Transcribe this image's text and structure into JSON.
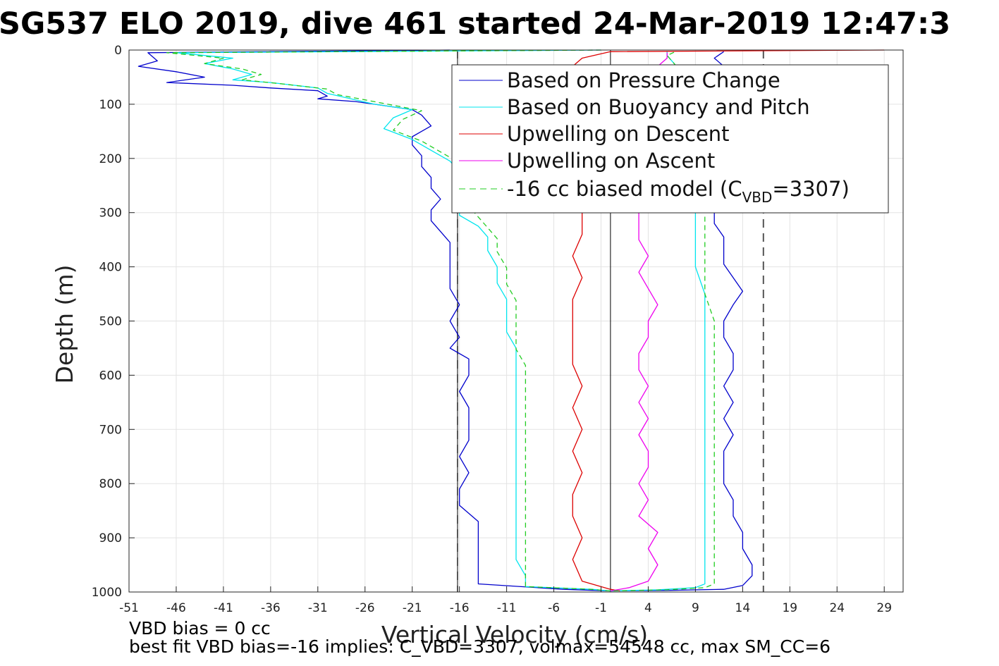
{
  "figure": {
    "footnote_1": "VBD bias = 0 cc",
    "footnote_2": "best fit VBD bias=-16 implies: C_VBD=3307, volmax=54548 cc, max SM_CC=6"
  },
  "chart_data": {
    "type": "line",
    "title": "SG537 ELO 2019, dive 461 started 24-Mar-2019 12:47:3",
    "xlabel": "Vertical Velocity (cm/s)",
    "ylabel": "Depth (m)",
    "xlim": [
      -51,
      31
    ],
    "ylim": [
      1000,
      0
    ],
    "y_reversed": true,
    "grid": true,
    "legend_placement": "top-right",
    "x_ticks": [
      -51,
      -46,
      -41,
      -36,
      -31,
      -26,
      -21,
      -16,
      -11,
      -6,
      -1,
      4,
      9,
      14,
      19,
      24,
      29
    ],
    "y_ticks": [
      0,
      100,
      200,
      300,
      400,
      500,
      600,
      700,
      800,
      900,
      1000
    ],
    "legend": {
      "pressure": "Based on Pressure Change",
      "buoyancy": "Based on Buoyancy and Pitch",
      "up_descent": "Upwelling on Descent",
      "up_ascent": "Upwelling on Ascent",
      "model_prefix": "-16 cc biased model (C",
      "model_sub": "VBD",
      "model_suffix": "=3307)"
    },
    "reference_lines": {
      "solid_x": [
        -16.2,
        0
      ],
      "dashed_x": [
        -16.2,
        16.2
      ]
    },
    "series": [
      {
        "key": "pressure",
        "color": "#0000cc",
        "style": "solid",
        "points": [
          [
            -17,
            0
          ],
          [
            -49,
            5
          ],
          [
            -48,
            20
          ],
          [
            -50,
            30
          ],
          [
            -46,
            40
          ],
          [
            -43,
            50
          ],
          [
            -47,
            60
          ],
          [
            -40,
            65
          ],
          [
            -36,
            70
          ],
          [
            -31,
            75
          ],
          [
            -30,
            85
          ],
          [
            -31,
            90
          ],
          [
            -27,
            95
          ],
          [
            -25,
            100
          ],
          [
            -21,
            110
          ],
          [
            -20,
            120
          ],
          [
            -19,
            140
          ],
          [
            -20,
            150
          ],
          [
            -21,
            160
          ],
          [
            -21,
            175
          ],
          [
            -20,
            195
          ],
          [
            -20,
            215
          ],
          [
            -19,
            235
          ],
          [
            -19,
            255
          ],
          [
            -18,
            275
          ],
          [
            -19,
            295
          ],
          [
            -19,
            315
          ],
          [
            -18,
            335
          ],
          [
            -17,
            355
          ],
          [
            -17,
            380
          ],
          [
            -17,
            410
          ],
          [
            -17,
            440
          ],
          [
            -16,
            470
          ],
          [
            -17,
            500
          ],
          [
            -16,
            530
          ],
          [
            -17,
            550
          ],
          [
            -15,
            570
          ],
          [
            -15,
            600
          ],
          [
            -16,
            630
          ],
          [
            -15,
            660
          ],
          [
            -15,
            690
          ],
          [
            -15,
            720
          ],
          [
            -16,
            750
          ],
          [
            -15,
            780
          ],
          [
            -16,
            810
          ],
          [
            -16,
            840
          ],
          [
            -14,
            870
          ],
          [
            -14,
            900
          ],
          [
            -14,
            930
          ],
          [
            -14,
            960
          ],
          [
            -14,
            985
          ],
          [
            -5,
            995
          ],
          [
            0,
            998
          ],
          [
            6,
            997
          ],
          [
            12,
            995
          ],
          [
            14,
            988
          ],
          [
            15,
            970
          ],
          [
            15,
            950
          ],
          [
            14,
            920
          ],
          [
            14,
            890
          ],
          [
            13,
            860
          ],
          [
            13,
            830
          ],
          [
            12,
            800
          ],
          [
            12,
            770
          ],
          [
            12,
            740
          ],
          [
            13,
            710
          ],
          [
            12,
            680
          ],
          [
            13,
            650
          ],
          [
            12,
            620
          ],
          [
            13,
            590
          ],
          [
            13,
            560
          ],
          [
            12,
            530
          ],
          [
            12,
            500
          ],
          [
            13,
            470
          ],
          [
            14,
            445
          ],
          [
            13,
            420
          ],
          [
            12,
            395
          ],
          [
            12,
            370
          ],
          [
            12,
            345
          ],
          [
            11,
            320
          ],
          [
            11,
            300
          ],
          [
            11,
            270
          ],
          [
            10,
            240
          ],
          [
            10,
            210
          ],
          [
            10,
            180
          ],
          [
            10,
            150
          ],
          [
            11,
            120
          ],
          [
            11,
            90
          ],
          [
            12,
            60
          ],
          [
            13,
            45
          ],
          [
            12,
            30
          ],
          [
            11,
            15
          ],
          [
            12,
            3
          ]
        ]
      },
      {
        "key": "buoyancy",
        "color": "#00e5ee",
        "style": "solid",
        "points": [
          [
            -1,
            0
          ],
          [
            -46,
            5
          ],
          [
            -40,
            15
          ],
          [
            -43,
            25
          ],
          [
            -40,
            35
          ],
          [
            -38,
            45
          ],
          [
            -40,
            55
          ],
          [
            -36,
            60
          ],
          [
            -31,
            70
          ],
          [
            -30,
            80
          ],
          [
            -27,
            92
          ],
          [
            -25,
            100
          ],
          [
            -21,
            110
          ],
          [
            -23,
            125
          ],
          [
            -24,
            145
          ],
          [
            -21,
            165
          ],
          [
            -19,
            185
          ],
          [
            -17,
            205
          ],
          [
            -16,
            225
          ],
          [
            -16,
            245
          ],
          [
            -15,
            265
          ],
          [
            -16,
            285
          ],
          [
            -16,
            305
          ],
          [
            -14,
            325
          ],
          [
            -13,
            345
          ],
          [
            -13,
            370
          ],
          [
            -12,
            400
          ],
          [
            -12,
            430
          ],
          [
            -11,
            460
          ],
          [
            -11,
            490
          ],
          [
            -11,
            520
          ],
          [
            -10,
            550
          ],
          [
            -10,
            580
          ],
          [
            -10,
            610
          ],
          [
            -10,
            640
          ],
          [
            -10,
            670
          ],
          [
            -10,
            700
          ],
          [
            -10,
            730
          ],
          [
            -10,
            760
          ],
          [
            -10,
            790
          ],
          [
            -10,
            820
          ],
          [
            -10,
            850
          ],
          [
            -10,
            880
          ],
          [
            -10,
            910
          ],
          [
            -10,
            940
          ],
          [
            -9,
            970
          ],
          [
            -9,
            990
          ],
          [
            -2,
            995
          ],
          [
            0,
            998
          ],
          [
            5,
            996
          ],
          [
            9,
            992
          ],
          [
            10,
            985
          ],
          [
            10,
            950
          ],
          [
            10,
            900
          ],
          [
            10,
            850
          ],
          [
            10,
            800
          ],
          [
            10,
            750
          ],
          [
            10,
            700
          ],
          [
            10,
            650
          ],
          [
            10,
            600
          ],
          [
            10,
            550
          ],
          [
            10,
            500
          ],
          [
            10,
            450
          ],
          [
            9,
            400
          ],
          [
            9,
            350
          ],
          [
            9,
            300
          ],
          [
            8,
            250
          ],
          [
            8,
            200
          ],
          [
            8,
            150
          ],
          [
            7,
            100
          ],
          [
            7,
            60
          ],
          [
            7,
            30
          ],
          [
            6,
            10
          ],
          [
            6,
            2
          ]
        ]
      },
      {
        "key": "up_descent",
        "color": "#dd0000",
        "style": "solid",
        "points": [
          [
            29,
            0
          ],
          [
            0,
            3
          ],
          [
            -3,
            15
          ],
          [
            -4,
            30
          ],
          [
            -4,
            60
          ],
          [
            -3,
            100
          ],
          [
            -3,
            150
          ],
          [
            -3,
            200
          ],
          [
            -3,
            250
          ],
          [
            -3,
            300
          ],
          [
            -3,
            340
          ],
          [
            -4,
            380
          ],
          [
            -3,
            420
          ],
          [
            -4,
            460
          ],
          [
            -4,
            500
          ],
          [
            -4,
            540
          ],
          [
            -4,
            580
          ],
          [
            -3,
            620
          ],
          [
            -4,
            660
          ],
          [
            -3,
            700
          ],
          [
            -4,
            740
          ],
          [
            -3,
            780
          ],
          [
            -4,
            820
          ],
          [
            -4,
            860
          ],
          [
            -3,
            900
          ],
          [
            -4,
            940
          ],
          [
            -3,
            980
          ],
          [
            0,
            995
          ],
          [
            1,
            998
          ]
        ]
      },
      {
        "key": "up_ascent",
        "color": "#ee00ee",
        "style": "solid",
        "points": [
          [
            0,
            998
          ],
          [
            2,
            992
          ],
          [
            4,
            980
          ],
          [
            5,
            950
          ],
          [
            4,
            920
          ],
          [
            5,
            890
          ],
          [
            3,
            860
          ],
          [
            4,
            830
          ],
          [
            3,
            800
          ],
          [
            4,
            770
          ],
          [
            4,
            740
          ],
          [
            3,
            710
          ],
          [
            4,
            680
          ],
          [
            3,
            650
          ],
          [
            4,
            620
          ],
          [
            3,
            590
          ],
          [
            3,
            560
          ],
          [
            4,
            530
          ],
          [
            4,
            500
          ],
          [
            5,
            470
          ],
          [
            4,
            440
          ],
          [
            3,
            410
          ],
          [
            4,
            380
          ],
          [
            3,
            350
          ],
          [
            3,
            320
          ],
          [
            3,
            290
          ],
          [
            4,
            250
          ],
          [
            5,
            200
          ],
          [
            5,
            150
          ],
          [
            6,
            100
          ],
          [
            6,
            60
          ],
          [
            5,
            30
          ],
          [
            6,
            15
          ],
          [
            6,
            5
          ]
        ]
      },
      {
        "key": "model",
        "color": "#22cc22",
        "style": "dashed",
        "points": [
          [
            -1,
            0
          ],
          [
            -47,
            5
          ],
          [
            -41,
            15
          ],
          [
            -43,
            25
          ],
          [
            -39,
            35
          ],
          [
            -37,
            45
          ],
          [
            -39,
            55
          ],
          [
            -35,
            62
          ],
          [
            -30,
            72
          ],
          [
            -29,
            82
          ],
          [
            -26,
            92
          ],
          [
            -23,
            102
          ],
          [
            -20,
            112
          ],
          [
            -22,
            128
          ],
          [
            -23,
            148
          ],
          [
            -20,
            168
          ],
          [
            -18,
            188
          ],
          [
            -16,
            208
          ],
          [
            -15,
            228
          ],
          [
            -15,
            248
          ],
          [
            -14,
            268
          ],
          [
            -15,
            288
          ],
          [
            -14,
            308
          ],
          [
            -13,
            328
          ],
          [
            -12,
            348
          ],
          [
            -12,
            372
          ],
          [
            -11,
            402
          ],
          [
            -11,
            432
          ],
          [
            -10,
            462
          ],
          [
            -10,
            492
          ],
          [
            -10,
            522
          ],
          [
            -10,
            552
          ],
          [
            -9,
            582
          ],
          [
            -9,
            612
          ],
          [
            -9,
            642
          ],
          [
            -9,
            672
          ],
          [
            -9,
            702
          ],
          [
            -9,
            732
          ],
          [
            -9,
            762
          ],
          [
            -9,
            792
          ],
          [
            -9,
            822
          ],
          [
            -9,
            852
          ],
          [
            -9,
            882
          ],
          [
            -9,
            912
          ],
          [
            -9,
            942
          ],
          [
            -9,
            972
          ],
          [
            -9,
            990
          ],
          [
            -2,
            995
          ],
          [
            0,
            998
          ],
          [
            6,
            996
          ],
          [
            10,
            992
          ],
          [
            11,
            985
          ],
          [
            11,
            950
          ],
          [
            11,
            900
          ],
          [
            11,
            850
          ],
          [
            11,
            800
          ],
          [
            11,
            750
          ],
          [
            11,
            700
          ],
          [
            11,
            650
          ],
          [
            11,
            600
          ],
          [
            11,
            550
          ],
          [
            11,
            500
          ],
          [
            10,
            450
          ],
          [
            10,
            400
          ],
          [
            10,
            350
          ],
          [
            10,
            300
          ],
          [
            9,
            250
          ],
          [
            9,
            200
          ],
          [
            8,
            150
          ],
          [
            8,
            100
          ],
          [
            7,
            60
          ],
          [
            7,
            30
          ],
          [
            6,
            10
          ],
          [
            7,
            2
          ]
        ]
      }
    ]
  }
}
